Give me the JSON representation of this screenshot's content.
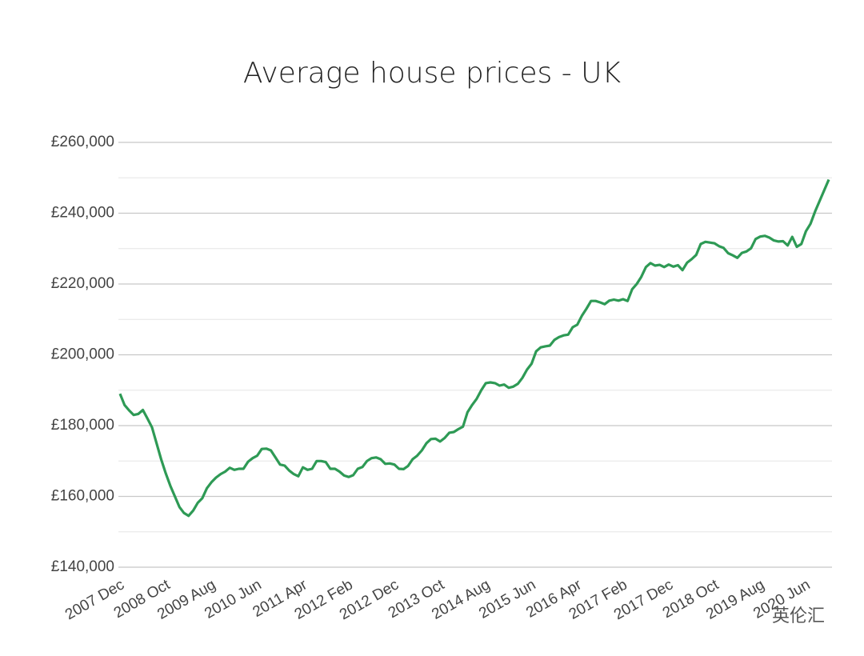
{
  "chart_data": {
    "type": "line",
    "title": "Average house prices - UK",
    "watermark": "英伦汇",
    "categories": [
      "2007 Dec",
      null,
      null,
      null,
      null,
      null,
      null,
      null,
      null,
      null,
      "2008 Oct",
      null,
      null,
      null,
      null,
      null,
      null,
      null,
      null,
      null,
      "2009 Aug",
      null,
      null,
      null,
      null,
      null,
      null,
      null,
      null,
      null,
      "2010 Jun",
      null,
      null,
      null,
      null,
      null,
      null,
      null,
      null,
      null,
      "2011 Apr",
      null,
      null,
      null,
      null,
      null,
      null,
      null,
      null,
      null,
      "2012 Feb",
      null,
      null,
      null,
      null,
      null,
      null,
      null,
      null,
      null,
      "2012 Dec",
      null,
      null,
      null,
      null,
      null,
      null,
      null,
      null,
      null,
      "2013 Oct",
      null,
      null,
      null,
      null,
      null,
      null,
      null,
      null,
      null,
      "2014 Aug",
      null,
      null,
      null,
      null,
      null,
      null,
      null,
      null,
      null,
      "2015 Jun",
      null,
      null,
      null,
      null,
      null,
      null,
      null,
      null,
      null,
      "2016 Apr",
      null,
      null,
      null,
      null,
      null,
      null,
      null,
      null,
      null,
      "2017 Feb",
      null,
      null,
      null,
      null,
      null,
      null,
      null,
      null,
      null,
      "2017 Dec",
      null,
      null,
      null,
      null,
      null,
      null,
      null,
      null,
      null,
      "2018 Oct",
      null,
      null,
      null,
      null,
      null,
      null,
      null,
      null,
      null,
      "2019 Aug",
      null,
      null,
      null,
      null,
      null,
      null,
      null,
      null,
      null,
      "2020 Jun",
      null,
      null,
      null,
      null,
      null
    ],
    "series": [
      {
        "name": "UK",
        "color": "#2e9a55",
        "values": [
          189000,
          185800,
          184300,
          183000,
          183300,
          184400,
          182000,
          179500,
          175000,
          170500,
          166500,
          163000,
          160000,
          157000,
          155300,
          154500,
          156000,
          158200,
          159500,
          162300,
          164000,
          165300,
          166300,
          167000,
          168100,
          167500,
          167800,
          167800,
          169800,
          170800,
          171500,
          173400,
          173500,
          173000,
          171000,
          169000,
          168700,
          167300,
          166300,
          165700,
          168200,
          167500,
          167800,
          170000,
          170000,
          169700,
          167800,
          167800,
          167000,
          165900,
          165500,
          166000,
          167800,
          168300,
          170000,
          170800,
          171000,
          170500,
          169200,
          169300,
          169000,
          167800,
          167700,
          168600,
          170500,
          171500,
          173000,
          175000,
          176200,
          176300,
          175500,
          176500,
          178000,
          178200,
          179000,
          179700,
          183800,
          185800,
          187600,
          190000,
          192000,
          192200,
          192000,
          191300,
          191600,
          190700,
          191000,
          191800,
          193500,
          195800,
          197500,
          201000,
          202100,
          202400,
          202600,
          204200,
          205000,
          205500,
          205700,
          207800,
          208500,
          211000,
          213000,
          215200,
          215200,
          214800,
          214300,
          215300,
          215600,
          215300,
          215700,
          215200,
          218500,
          220000,
          222000,
          224800,
          225900,
          225200,
          225400,
          224800,
          225500,
          224900,
          225300,
          223900,
          226000,
          227000,
          228200,
          231300,
          231900,
          231700,
          231500,
          230700,
          230200,
          228700,
          228100,
          227400,
          228800,
          229200,
          230100,
          232700,
          233400,
          233600,
          233100,
          232300,
          232000,
          232100,
          230900,
          233300,
          230500,
          231300,
          234900,
          237000,
          240500,
          243500,
          246500,
          249500
        ]
      }
    ],
    "ylim": [
      140000,
      260000
    ],
    "yticks": [
      {
        "value": 140000,
        "label": "£140,000"
      },
      {
        "value": 160000,
        "label": "£160,000"
      },
      {
        "value": 180000,
        "label": "£180,000"
      },
      {
        "value": 200000,
        "label": "£200,000"
      },
      {
        "value": 220000,
        "label": "£220,000"
      },
      {
        "value": 240000,
        "label": "£240,000"
      },
      {
        "value": 260000,
        "label": "£260,000"
      }
    ],
    "minor_yticks": [
      150000,
      170000,
      190000,
      210000,
      230000,
      250000
    ],
    "grid": true
  }
}
